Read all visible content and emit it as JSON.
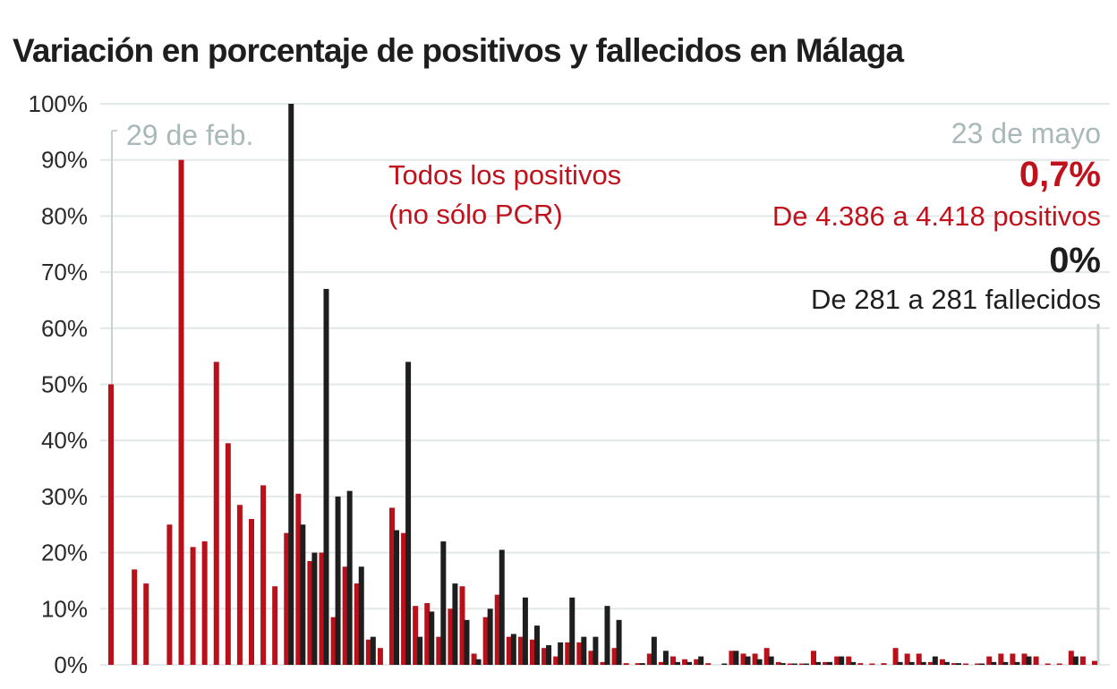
{
  "chart_data": {
    "type": "bar",
    "title": "Variación en porcentaje de positivos y fallecidos en Málaga",
    "xlabel": "",
    "ylabel": "",
    "ylim": [
      0,
      100
    ],
    "yticks": [
      "0%",
      "10%",
      "20%",
      "30%",
      "40%",
      "50%",
      "60%",
      "70%",
      "80%",
      "90%",
      "100%"
    ],
    "ytick_values": [
      0,
      10,
      20,
      30,
      40,
      50,
      60,
      70,
      80,
      90,
      100
    ],
    "grid": true,
    "x_start_label": "29 de feb.",
    "x_end_label": "23 de mayo",
    "x_days": 85,
    "series": [
      {
        "name": "Todos los positivos (no sólo PCR)",
        "color": "#b8111b",
        "values": [
          50,
          0,
          17,
          14.5,
          0,
          25,
          90,
          21,
          22,
          54,
          39.5,
          28.5,
          26,
          32,
          14,
          23.5,
          30.5,
          18.5,
          20,
          8.5,
          17.5,
          14.5,
          4.5,
          3,
          28,
          23.5,
          10.5,
          11,
          5,
          10,
          14,
          2,
          8.5,
          12.5,
          5,
          5,
          4.5,
          3,
          1.5,
          4,
          4,
          2.5,
          0.5,
          3,
          0.3,
          0.3,
          2,
          0.5,
          1.5,
          1,
          1,
          0.3,
          0,
          2.5,
          2,
          2,
          3,
          0.5,
          0.2,
          0.2,
          2.5,
          0.5,
          1.5,
          1.5,
          0.3,
          0.2,
          0.3,
          3,
          2,
          2,
          0.5,
          1,
          0.3,
          0.2,
          0.2,
          1.5,
          2,
          2,
          2,
          1.5,
          0.2,
          0.2,
          2.5,
          1.5,
          0.7
        ]
      },
      {
        "name": "Fallecidos",
        "color": "#1e1e1e",
        "values": [
          0,
          0,
          0,
          0,
          0,
          0,
          0,
          0,
          0,
          0,
          0,
          0,
          0,
          0,
          0,
          100,
          25,
          20,
          67,
          30,
          31,
          17.5,
          5,
          0,
          24,
          54,
          5,
          9.5,
          22,
          14.5,
          8,
          1,
          10,
          20.5,
          5.5,
          12,
          7,
          3.5,
          4,
          12,
          5,
          5,
          10.5,
          8,
          0,
          0.3,
          5,
          2.5,
          0.5,
          0.5,
          1.5,
          0,
          0.2,
          2.5,
          1.5,
          1,
          1.5,
          0.3,
          0.2,
          0.2,
          0.5,
          0.5,
          1.5,
          0.5,
          0,
          0,
          0,
          0.5,
          0.5,
          0.5,
          1.5,
          0.5,
          0.3,
          0,
          0.2,
          0.5,
          0.5,
          0.5,
          1.5,
          0,
          0,
          0,
          1.5,
          0,
          0
        ]
      }
    ],
    "annotations": {
      "positives_label_line1": "Todos los positivos",
      "positives_label_line2": "(no sólo PCR)",
      "end_positives_pct": "0,7%",
      "end_positives_text": "De 4.386  a 4.418 positivos",
      "end_deaths_pct": "0%",
      "end_deaths_text": "De 281 a 281 fallecidos"
    },
    "colors": {
      "red": "#b8111b",
      "black": "#1e1e1e",
      "grid": "#e3e9e9",
      "date_label": "#a9b8b8",
      "bracket": "#c9d2d2"
    }
  }
}
